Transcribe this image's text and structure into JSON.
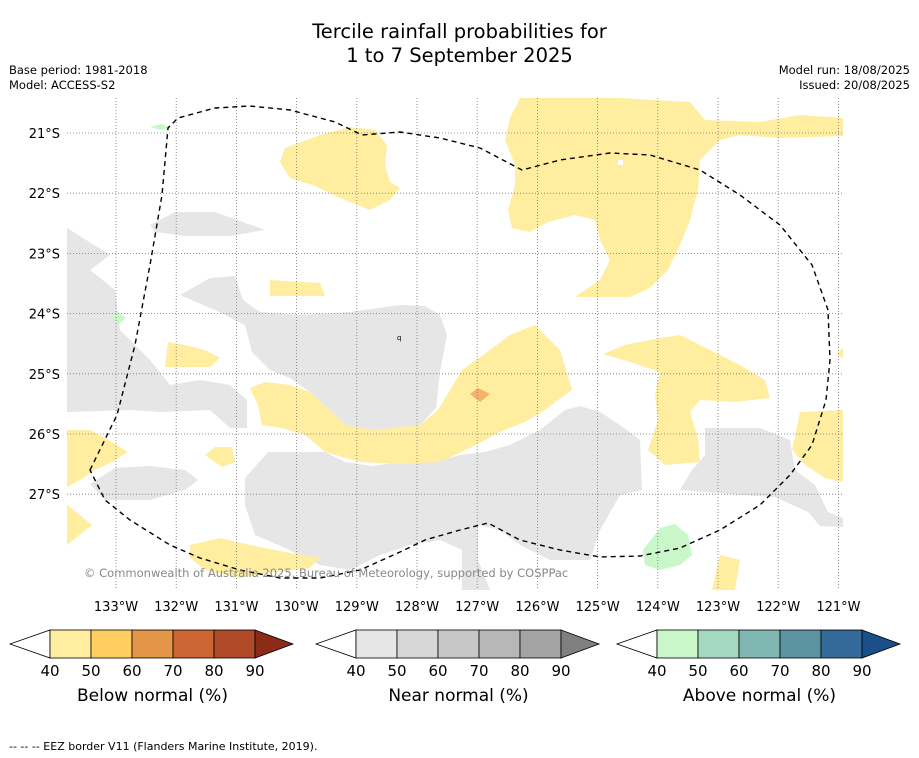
{
  "title_line1": "Tercile rainfall probabilities for",
  "title_line2": "1 to 7 September 2025",
  "meta_left": {
    "base_period": "Base period: 1981-2018",
    "model": "Model: ACCESS-S2"
  },
  "meta_right": {
    "model_run": "Model run: 18/08/2025",
    "issued": "Issued: 20/08/2025"
  },
  "map": {
    "lon_labels": [
      "133°W",
      "132°W",
      "131°W",
      "130°W",
      "129°W",
      "128°W",
      "127°W",
      "126°W",
      "125°W",
      "124°W",
      "123°W",
      "122°W",
      "121°W"
    ],
    "lat_labels": [
      "21°S",
      "22°S",
      "23°S",
      "24°S",
      "25°S",
      "26°S",
      "27°S"
    ],
    "copyright": "© Commonwealth of Australia 2025, Bureau of Meteorology, supported by COSPPac",
    "colors": {
      "below_40": "#ffeea0",
      "below_60": "#f5b06a",
      "near_40": "#e6e6e6",
      "above_40": "#c9f7c9",
      "grid": "#777777",
      "eez": "#000000"
    }
  },
  "colorbars": [
    {
      "title": "Below normal (%)",
      "ticks": [
        "40",
        "50",
        "60",
        "70",
        "80",
        "90"
      ],
      "colors": [
        "#ffeea0",
        "#ffcd60",
        "#e39548",
        "#cd6532",
        "#b04a28",
        "#8c2b18"
      ]
    },
    {
      "title": "Near normal (%)",
      "ticks": [
        "40",
        "50",
        "60",
        "70",
        "80",
        "90"
      ],
      "colors": [
        "#e6e6e6",
        "#d7d7d7",
        "#c7c7c7",
        "#b7b7b7",
        "#a4a4a4",
        "#808080"
      ]
    },
    {
      "title": "Above normal (%)",
      "ticks": [
        "40",
        "50",
        "60",
        "70",
        "80",
        "90"
      ],
      "colors": [
        "#c9f7c9",
        "#a3d9be",
        "#80b6b2",
        "#5b93a3",
        "#336a9a",
        "#1a4f8a"
      ]
    }
  ],
  "footnote": "--  --  -- EEZ border V11 (Flanders Marine Institute, 2019)."
}
